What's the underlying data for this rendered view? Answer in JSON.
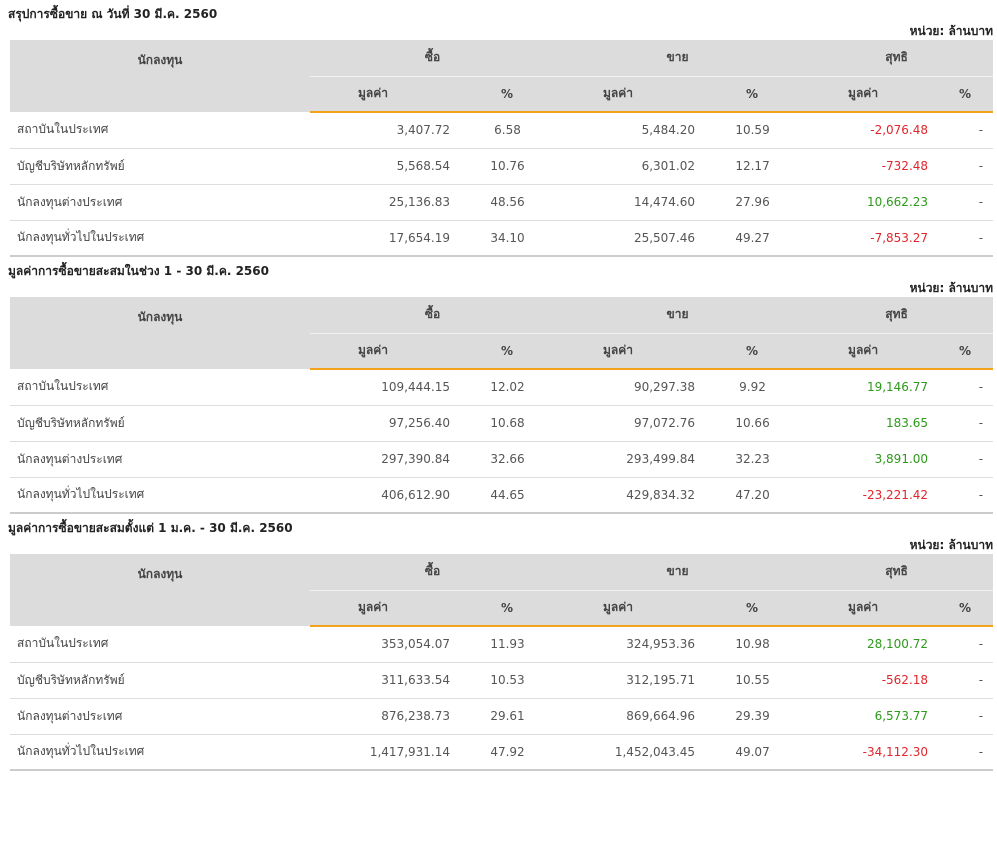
{
  "colors": {
    "header_bg": "#dcdcdc",
    "accent": "#f3a21b",
    "negative": "#e0262c",
    "positive": "#2c9a1a"
  },
  "unit_label": "หน่วย: ล้านบาท",
  "headers": {
    "investor": "นักลงทุน",
    "buy": "ซื้อ",
    "sell": "ขาย",
    "net": "สุทธิ",
    "value": "มูลค่า",
    "percent": "%"
  },
  "sections": [
    {
      "title": "สรุปการซื้อขาย ณ วันที่ 30 มี.ค. 2560",
      "rows": [
        {
          "name": "สถาบันในประเทศ",
          "buy_value": "3,407.72",
          "buy_pct": "6.58",
          "sell_value": "5,484.20",
          "sell_pct": "10.59",
          "net_value": "-2,076.48",
          "net_pct": "-",
          "net_sign": "neg"
        },
        {
          "name": "บัญชีบริษัทหลักทรัพย์",
          "buy_value": "5,568.54",
          "buy_pct": "10.76",
          "sell_value": "6,301.02",
          "sell_pct": "12.17",
          "net_value": "-732.48",
          "net_pct": "-",
          "net_sign": "neg"
        },
        {
          "name": "นักลงทุนต่างประเทศ",
          "buy_value": "25,136.83",
          "buy_pct": "48.56",
          "sell_value": "14,474.60",
          "sell_pct": "27.96",
          "net_value": "10,662.23",
          "net_pct": "-",
          "net_sign": "pos"
        },
        {
          "name": "นักลงทุนทั่วไปในประเทศ",
          "buy_value": "17,654.19",
          "buy_pct": "34.10",
          "sell_value": "25,507.46",
          "sell_pct": "49.27",
          "net_value": "-7,853.27",
          "net_pct": "-",
          "net_sign": "neg"
        }
      ]
    },
    {
      "title": "มูลค่าการซื้อขายสะสมในช่วง 1 - 30 มี.ค. 2560",
      "rows": [
        {
          "name": "สถาบันในประเทศ",
          "buy_value": "109,444.15",
          "buy_pct": "12.02",
          "sell_value": "90,297.38",
          "sell_pct": "9.92",
          "net_value": "19,146.77",
          "net_pct": "-",
          "net_sign": "pos"
        },
        {
          "name": "บัญชีบริษัทหลักทรัพย์",
          "buy_value": "97,256.40",
          "buy_pct": "10.68",
          "sell_value": "97,072.76",
          "sell_pct": "10.66",
          "net_value": "183.65",
          "net_pct": "-",
          "net_sign": "pos"
        },
        {
          "name": "นักลงทุนต่างประเทศ",
          "buy_value": "297,390.84",
          "buy_pct": "32.66",
          "sell_value": "293,499.84",
          "sell_pct": "32.23",
          "net_value": "3,891.00",
          "net_pct": "-",
          "net_sign": "pos"
        },
        {
          "name": "นักลงทุนทั่วไปในประเทศ",
          "buy_value": "406,612.90",
          "buy_pct": "44.65",
          "sell_value": "429,834.32",
          "sell_pct": "47.20",
          "net_value": "-23,221.42",
          "net_pct": "-",
          "net_sign": "neg"
        }
      ]
    },
    {
      "title": "มูลค่าการซื้อขายสะสมตั้งแต่ 1 ม.ค. - 30 มี.ค. 2560",
      "rows": [
        {
          "name": "สถาบันในประเทศ",
          "buy_value": "353,054.07",
          "buy_pct": "11.93",
          "sell_value": "324,953.36",
          "sell_pct": "10.98",
          "net_value": "28,100.72",
          "net_pct": "-",
          "net_sign": "pos"
        },
        {
          "name": "บัญชีบริษัทหลักทรัพย์",
          "buy_value": "311,633.54",
          "buy_pct": "10.53",
          "sell_value": "312,195.71",
          "sell_pct": "10.55",
          "net_value": "-562.18",
          "net_pct": "-",
          "net_sign": "neg"
        },
        {
          "name": "นักลงทุนต่างประเทศ",
          "buy_value": "876,238.73",
          "buy_pct": "29.61",
          "sell_value": "869,664.96",
          "sell_pct": "29.39",
          "net_value": "6,573.77",
          "net_pct": "-",
          "net_sign": "pos"
        },
        {
          "name": "นักลงทุนทั่วไปในประเทศ",
          "buy_value": "1,417,931.14",
          "buy_pct": "47.92",
          "sell_value": "1,452,043.45",
          "sell_pct": "49.07",
          "net_value": "-34,112.30",
          "net_pct": "-",
          "net_sign": "neg"
        }
      ]
    }
  ]
}
